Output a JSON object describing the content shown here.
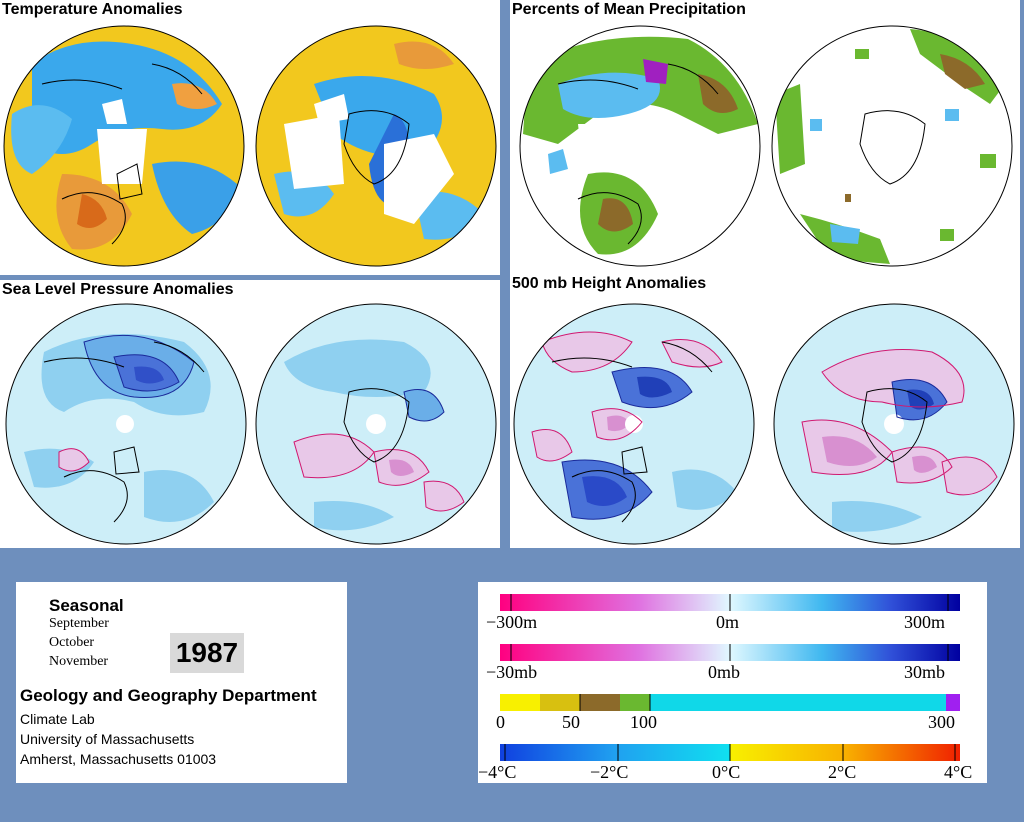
{
  "panels": {
    "temperature": {
      "title": "Temperature Anomalies"
    },
    "precipitation": {
      "title": "Percents of Mean Precipitation"
    },
    "slp": {
      "title": "Sea Level Pressure Anomalies"
    },
    "height500": {
      "title": "500 mb Height Anomalies"
    }
  },
  "info": {
    "season": "Seasonal",
    "months": [
      "September",
      "October",
      "November"
    ],
    "year": "1987",
    "department": "Geology and Geography Department",
    "address": [
      "Climate Lab",
      "University of Massachusetts",
      "Amherst, Massachusetts 01003"
    ]
  },
  "legend": {
    "height": {
      "labels": [
        "−300m",
        "0m",
        "300m"
      ]
    },
    "pressure": {
      "labels": [
        "−30mb",
        "0mb",
        "30mb"
      ]
    },
    "precip": {
      "labels": [
        "0",
        "50",
        "100",
        "300"
      ]
    },
    "temp": {
      "labels": [
        "−4°C",
        "−2°C",
        "0°C",
        "2°C",
        "4°C"
      ]
    }
  },
  "colors": {
    "background": "#6e8fbd",
    "temp_warm": "#f0c020",
    "temp_cool": "#3aa0e8",
    "precip_green": "#6ab830",
    "precip_brown": "#8c6a2a",
    "anom_light": "#cdeef8",
    "anom_blue": "#4a62d8",
    "anom_pink": "#e8c8e8",
    "contour_red": "#d01870"
  }
}
